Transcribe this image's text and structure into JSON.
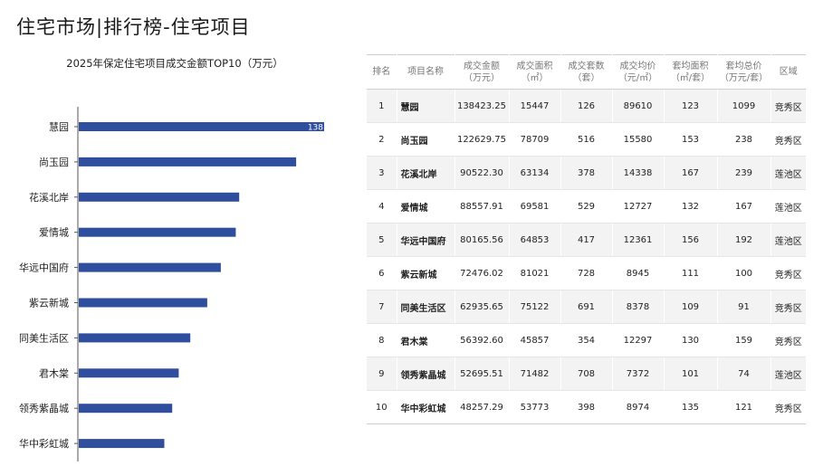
{
  "page": {
    "title": "住宅市场|排行榜-住宅项目"
  },
  "table": {
    "headers": [
      [
        "排名"
      ],
      [
        "项目名称"
      ],
      [
        "成交金额",
        "（万元）"
      ],
      [
        "成交面积",
        "（㎡）"
      ],
      [
        "成交套数",
        "（套）"
      ],
      [
        "成交均价",
        "（元/㎡）"
      ],
      [
        "套均面积",
        "（㎡/套）"
      ],
      [
        "套均总价",
        "（万元/套）"
      ],
      [
        "区域"
      ]
    ],
    "rows": [
      [
        "1",
        "慧园",
        "138423.25",
        "15447",
        "126",
        "89610",
        "123",
        "1099",
        "竞秀区"
      ],
      [
        "2",
        "尚玉园",
        "122629.75",
        "78709",
        "516",
        "15580",
        "153",
        "238",
        "竞秀区"
      ],
      [
        "3",
        "花溪北岸",
        "90522.30",
        "63134",
        "378",
        "14338",
        "167",
        "239",
        "莲池区"
      ],
      [
        "4",
        "爱情城",
        "88557.91",
        "69581",
        "529",
        "12727",
        "132",
        "167",
        "莲池区"
      ],
      [
        "5",
        "华远中国府",
        "80165.56",
        "64853",
        "417",
        "12361",
        "156",
        "192",
        "莲池区"
      ],
      [
        "6",
        "紫云新城",
        "72476.02",
        "81021",
        "728",
        "8945",
        "111",
        "100",
        "竞秀区"
      ],
      [
        "7",
        "同美生活区",
        "62935.65",
        "75122",
        "691",
        "8378",
        "109",
        "91",
        "竞秀区"
      ],
      [
        "8",
        "君木棠",
        "56392.60",
        "45857",
        "354",
        "12297",
        "130",
        "159",
        "竞秀区"
      ],
      [
        "9",
        "领秀紫晶城",
        "52695.51",
        "71482",
        "708",
        "7372",
        "101",
        "74",
        "莲池区"
      ],
      [
        "10",
        "华中彩虹城",
        "48257.29",
        "53773",
        "398",
        "8974",
        "135",
        "121",
        "竞秀区"
      ]
    ]
  },
  "chart_data": {
    "type": "bar",
    "orientation": "horizontal",
    "title": "2025年保定住宅项目成交金额TOP10（万元）",
    "categories": [
      "慧园",
      "尚玉园",
      "花溪北岸",
      "爱情城",
      "华远中国府",
      "紫云新城",
      "同美生活区",
      "君木棠",
      "领秀紫晶城",
      "华中彩虹城"
    ],
    "values": [
      138423.25,
      122629.75,
      90522.3,
      88557.91,
      80165.56,
      72476.02,
      62935.65,
      56392.6,
      52695.51,
      48257.29
    ],
    "data_labels": [
      "138",
      "",
      "",
      "",
      "",
      "",
      "",
      "",
      "",
      ""
    ],
    "xlim": [
      0,
      138423.25
    ],
    "bar_color": "#2f4f9e",
    "grid": false,
    "legend": "none"
  },
  "colors": {
    "bar": "#2f4f9e",
    "axis": "#555555",
    "label": "#222222"
  }
}
